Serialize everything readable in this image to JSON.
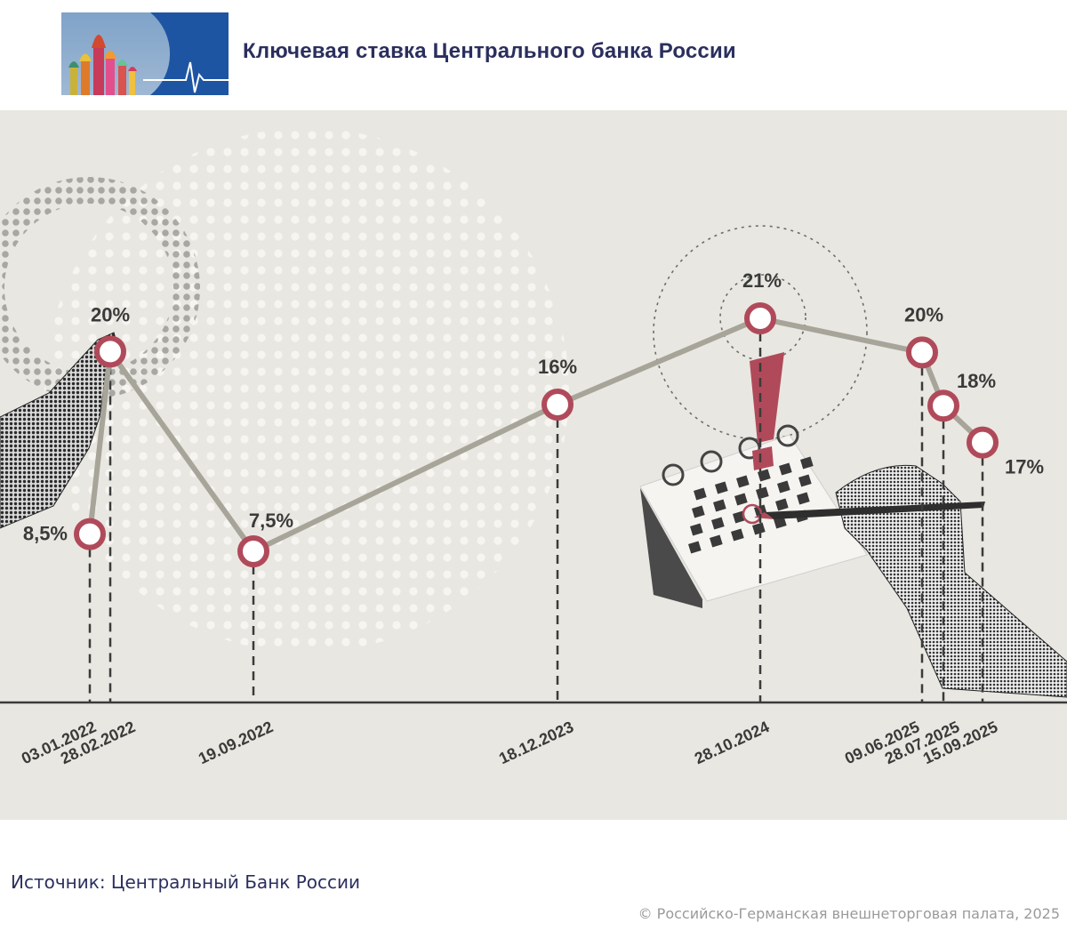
{
  "header": {
    "title": "Ключевая ставка Центрального банка России",
    "logo_icon": "kremlin-cathedral-heartbeat-logo"
  },
  "chart_data": {
    "type": "line",
    "title": "Ключевая ставка Центрального банка России",
    "xlabel": "",
    "ylabel": "",
    "points": [
      {
        "date": "03.01.2022",
        "value": 8.5,
        "label": "8,5%"
      },
      {
        "date": "28.02.2022",
        "value": 20,
        "label": "20%"
      },
      {
        "date": "19.09.2022",
        "value": 7.5,
        "label": "7,5%"
      },
      {
        "date": "18.12.2023",
        "value": 16,
        "label": "16%"
      },
      {
        "date": "28.10.2024",
        "value": 21,
        "label": "21%"
      },
      {
        "date": "09.06.2025",
        "value": 20,
        "label": "20%"
      },
      {
        "date": "28.07.2025",
        "value": 18,
        "label": "18%"
      },
      {
        "date": "15.09.2025",
        "value": 17,
        "label": "17%"
      }
    ],
    "grid": false,
    "colors": {
      "line": "#a7a599",
      "marker_ring": "#b04a5a",
      "marker_fill": "#ffffff",
      "background": "#e9e7e1",
      "axis": "#3b3b3b",
      "label": "#3a3a3a",
      "accent": "#b04a5a"
    }
  },
  "illustrations": [
    "pointing-hand-icon",
    "calendar-icon",
    "exclamation-icon",
    "writing-hand-icon"
  ],
  "footer": {
    "source": "Источник: Центральный Банк России",
    "copyright": "© Российско-Германская внешнеторговая палата, 2025"
  }
}
